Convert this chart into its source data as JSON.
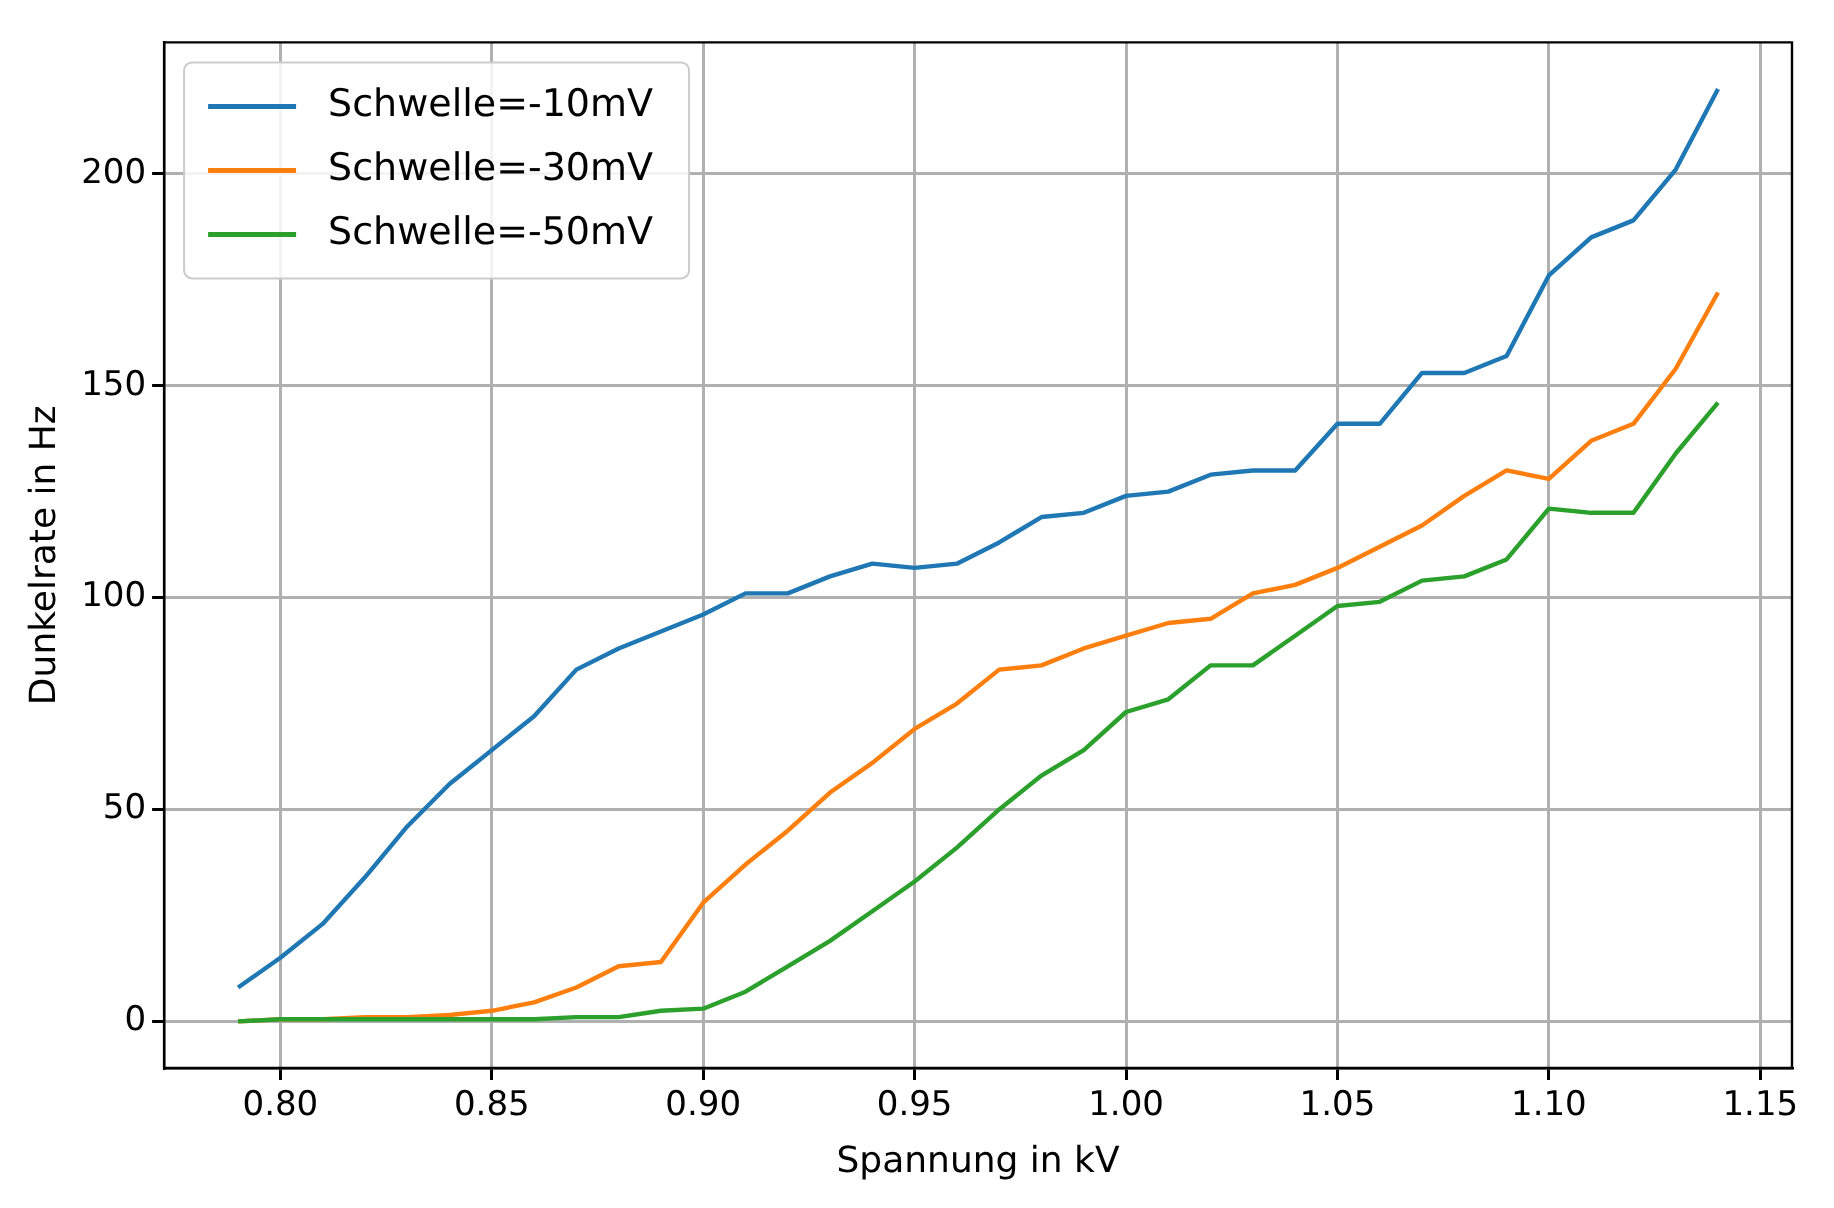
{
  "chart_data": {
    "type": "line",
    "xlabel": "Spannung in kV",
    "ylabel": "Dunkelrate in Hz",
    "x": [
      0.79,
      0.8,
      0.81,
      0.82,
      0.83,
      0.84,
      0.85,
      0.86,
      0.87,
      0.88,
      0.89,
      0.9,
      0.91,
      0.92,
      0.93,
      0.94,
      0.95,
      0.96,
      0.97,
      0.98,
      0.99,
      1.0,
      1.01,
      1.02,
      1.03,
      1.04,
      1.05,
      1.06,
      1.07,
      1.08,
      1.09,
      1.1,
      1.11,
      1.12,
      1.13,
      1.14
    ],
    "series": [
      {
        "name": "Schwelle=-10mV",
        "color": "#1f77b4",
        "values": [
          8,
          15,
          23,
          34,
          46,
          56,
          64,
          72,
          83,
          88,
          92,
          96,
          101,
          101,
          105,
          108,
          107,
          108,
          113,
          119,
          120,
          124,
          125,
          129,
          130,
          130,
          141,
          141,
          153,
          153,
          157,
          176,
          185,
          189,
          201,
          220
        ]
      },
      {
        "name": "Schwelle=-30mV",
        "color": "#ff7f0e",
        "values": [
          0,
          0.5,
          0.5,
          1,
          1,
          1.5,
          2.5,
          4.5,
          8,
          13,
          14,
          28,
          37,
          45,
          54,
          61,
          69,
          75,
          83,
          84,
          88,
          91,
          94,
          95,
          101,
          103,
          107,
          112,
          117,
          124,
          130,
          128,
          137,
          141,
          154,
          172
        ]
      },
      {
        "name": "Schwelle=-50mV",
        "color": "#2ca02c",
        "values": [
          0,
          0.5,
          0.5,
          0.5,
          0.5,
          0.5,
          0.5,
          0.5,
          1,
          1,
          2.5,
          3,
          7,
          13,
          19,
          26,
          33,
          41,
          50,
          58,
          64,
          73,
          76,
          84,
          84,
          91,
          98,
          99,
          104,
          105,
          109,
          121,
          120,
          120,
          134,
          146
        ]
      }
    ],
    "xlim": [
      0.7725,
      1.1575
    ],
    "xticks": [
      {
        "value": 0.8,
        "label": "0.80"
      },
      {
        "value": 0.85,
        "label": "0.85"
      },
      {
        "value": 0.9,
        "label": "0.90"
      },
      {
        "value": 0.95,
        "label": "0.95"
      },
      {
        "value": 1.0,
        "label": "1.00"
      },
      {
        "value": 1.05,
        "label": "1.05"
      },
      {
        "value": 1.1,
        "label": "1.10"
      },
      {
        "value": 1.15,
        "label": "1.15"
      }
    ],
    "ylim": [
      -11,
      231
    ],
    "yticks": [
      0,
      50,
      100,
      150,
      200
    ],
    "grid": true,
    "legend": "top left",
    "marker": "none",
    "line_style": "solid"
  }
}
